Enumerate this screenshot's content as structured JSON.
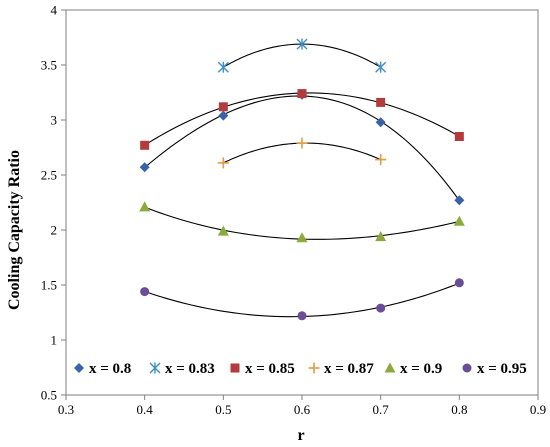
{
  "chart_data": {
    "type": "scatter",
    "xlabel": "r",
    "ylabel": "Cooling Capacity Ratio",
    "xlim": [
      0.3,
      0.9
    ],
    "ylim": [
      0.5,
      4
    ],
    "x_ticks": [
      "0.3",
      "0.4",
      "0.5",
      "0.6",
      "0.7",
      "0.8",
      "0.9"
    ],
    "y_ticks": [
      "0.5",
      "1",
      "1.5",
      "2",
      "2.5",
      "3",
      "3.5",
      "4"
    ],
    "grid": false,
    "legend_position": "bottom-inside",
    "series": [
      {
        "name": "x = 0.8",
        "marker": "diamond",
        "color": "#3a62a8",
        "x": [
          0.4,
          0.5,
          0.6,
          0.7,
          0.8
        ],
        "y": [
          2.57,
          3.04,
          3.23,
          2.98,
          2.27
        ]
      },
      {
        "name": "x = 0.83",
        "marker": "asterisk",
        "color": "#3f8ec9",
        "x": [
          0.5,
          0.6,
          0.7
        ],
        "y": [
          3.48,
          3.69,
          3.48
        ]
      },
      {
        "name": "x = 0.85",
        "marker": "square",
        "color": "#b23b3b",
        "x": [
          0.4,
          0.5,
          0.6,
          0.7,
          0.8
        ],
        "y": [
          2.77,
          3.12,
          3.24,
          3.16,
          2.85
        ]
      },
      {
        "name": "x = 0.87",
        "marker": "plus",
        "color": "#e69a3f",
        "x": [
          0.5,
          0.6,
          0.7
        ],
        "y": [
          2.61,
          2.79,
          2.64
        ]
      },
      {
        "name": "x = 0.9",
        "marker": "triangle",
        "color": "#8aab3c",
        "x": [
          0.4,
          0.5,
          0.6,
          0.7,
          0.8
        ],
        "y": [
          2.21,
          1.99,
          1.93,
          1.94,
          2.08
        ]
      },
      {
        "name": "x = 0.95",
        "marker": "circle",
        "color": "#6b4c96",
        "x": [
          0.4,
          0.6,
          0.7,
          0.8
        ],
        "y": [
          1.44,
          1.22,
          1.29,
          1.52
        ]
      }
    ]
  }
}
